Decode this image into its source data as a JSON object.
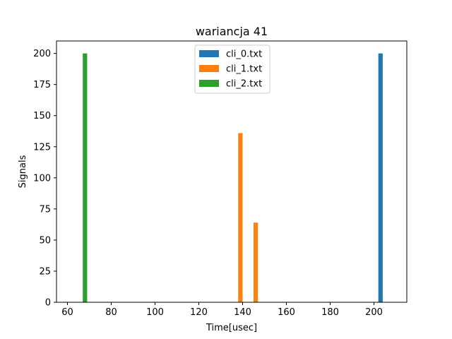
{
  "chart_data": {
    "type": "bar",
    "title": "wariancja 41",
    "xlabel": "Time[usec]",
    "ylabel": "Signals",
    "xlim": [
      55,
      215
    ],
    "ylim": [
      0,
      210
    ],
    "xticks": [
      60,
      80,
      100,
      120,
      140,
      160,
      180,
      200
    ],
    "yticks": [
      0,
      25,
      50,
      75,
      100,
      125,
      150,
      175,
      200
    ],
    "bar_width": 2,
    "legend_position": "upper center",
    "grid": false,
    "series": [
      {
        "name": "cli_0.txt",
        "color": "#1f77b4",
        "bars": [
          {
            "x": 203,
            "y": 200
          }
        ]
      },
      {
        "name": "cli_1.txt",
        "color": "#ff7f0e",
        "bars": [
          {
            "x": 139,
            "y": 136
          },
          {
            "x": 146,
            "y": 64
          }
        ]
      },
      {
        "name": "cli_2.txt",
        "color": "#2ca02c",
        "bars": [
          {
            "x": 68,
            "y": 200
          }
        ]
      }
    ]
  }
}
